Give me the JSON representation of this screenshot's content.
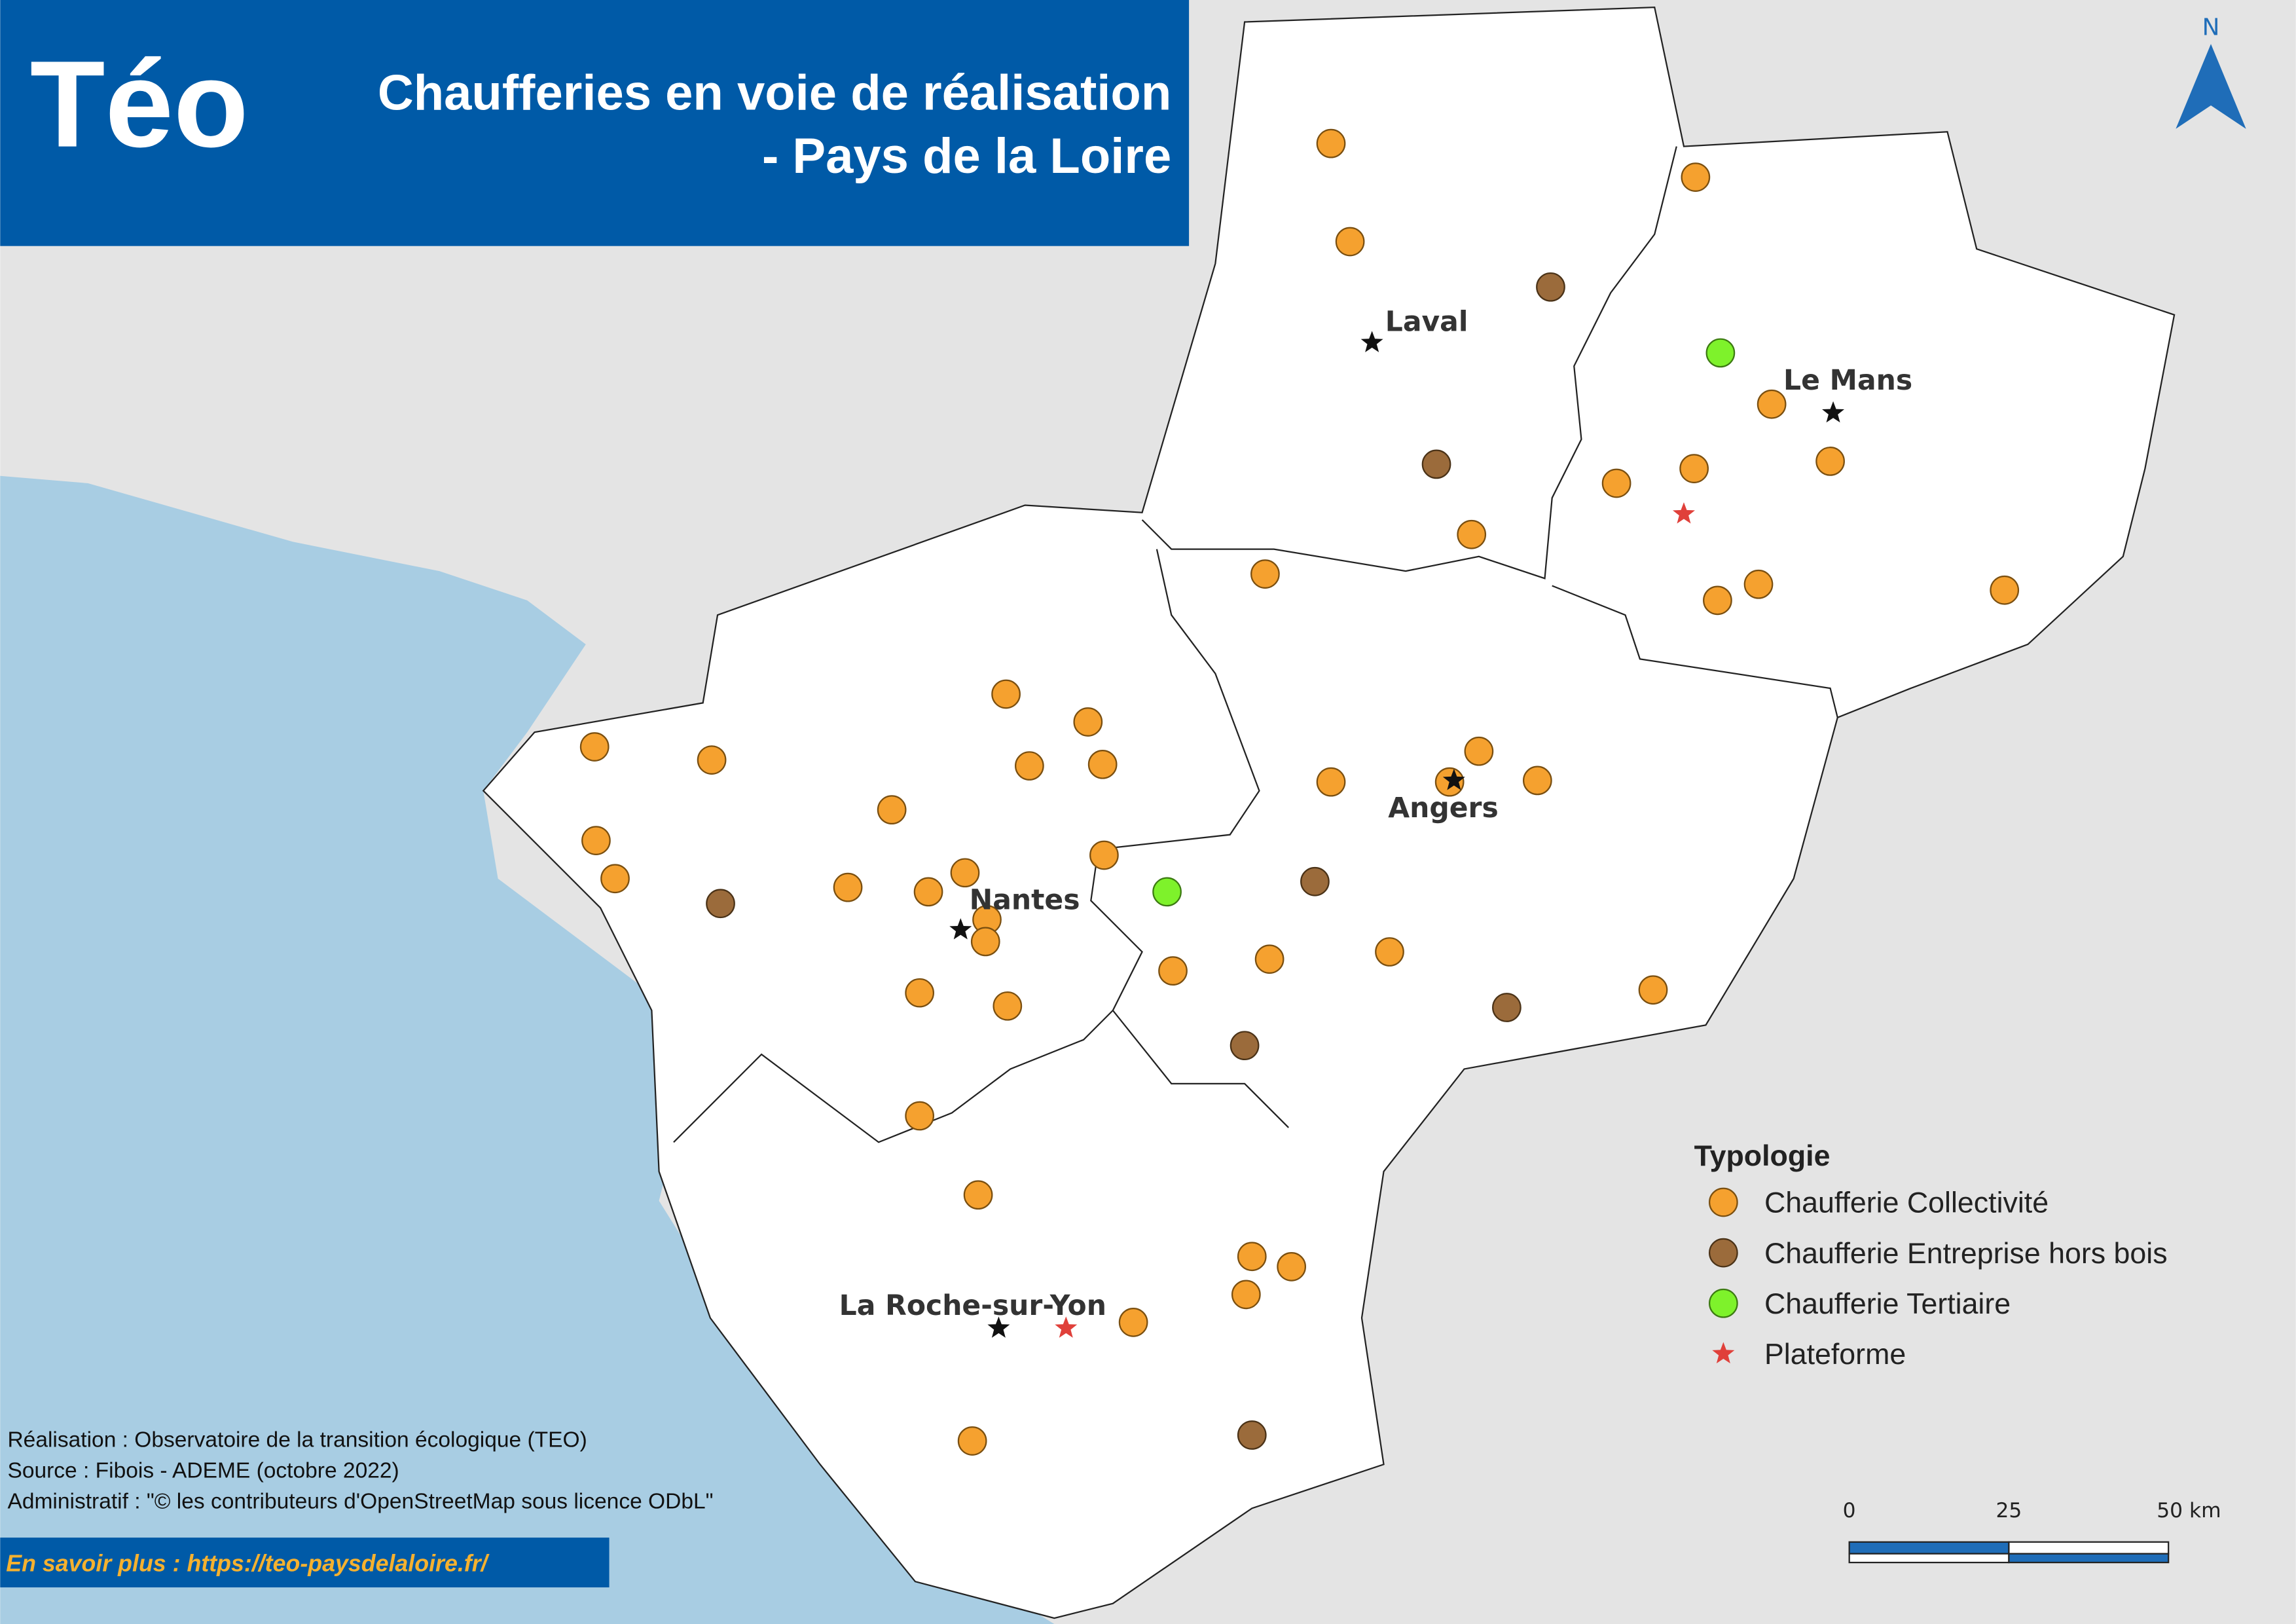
{
  "header": {
    "logo": "Téo",
    "title_line1": "Chaufferies en voie de réalisation",
    "title_line2": "- Pays de la Loire"
  },
  "north": "N",
  "cities": [
    "Laval",
    "Le Mans",
    "Angers",
    "Nantes",
    "La Roche-sur-Yon"
  ],
  "legend": {
    "title": "Typologie",
    "items": [
      "Chaufferie Collectivité",
      "Chaufferie Entreprise hors bois",
      "Chaufferie Tertiaire",
      "Plateforme"
    ]
  },
  "credits": [
    "Réalisation : Observatoire de la transition écologique (TEO)",
    "Source : Fibois - ADEME (octobre 2022)",
    "Administratif : \"© les contributeurs d'OpenStreetMap sous licence ODbL\""
  ],
  "link": "En savoir plus : https://teo-paysdelaloire.fr/",
  "scale": {
    "labels": [
      "0",
      "25",
      "50 km"
    ]
  }
}
